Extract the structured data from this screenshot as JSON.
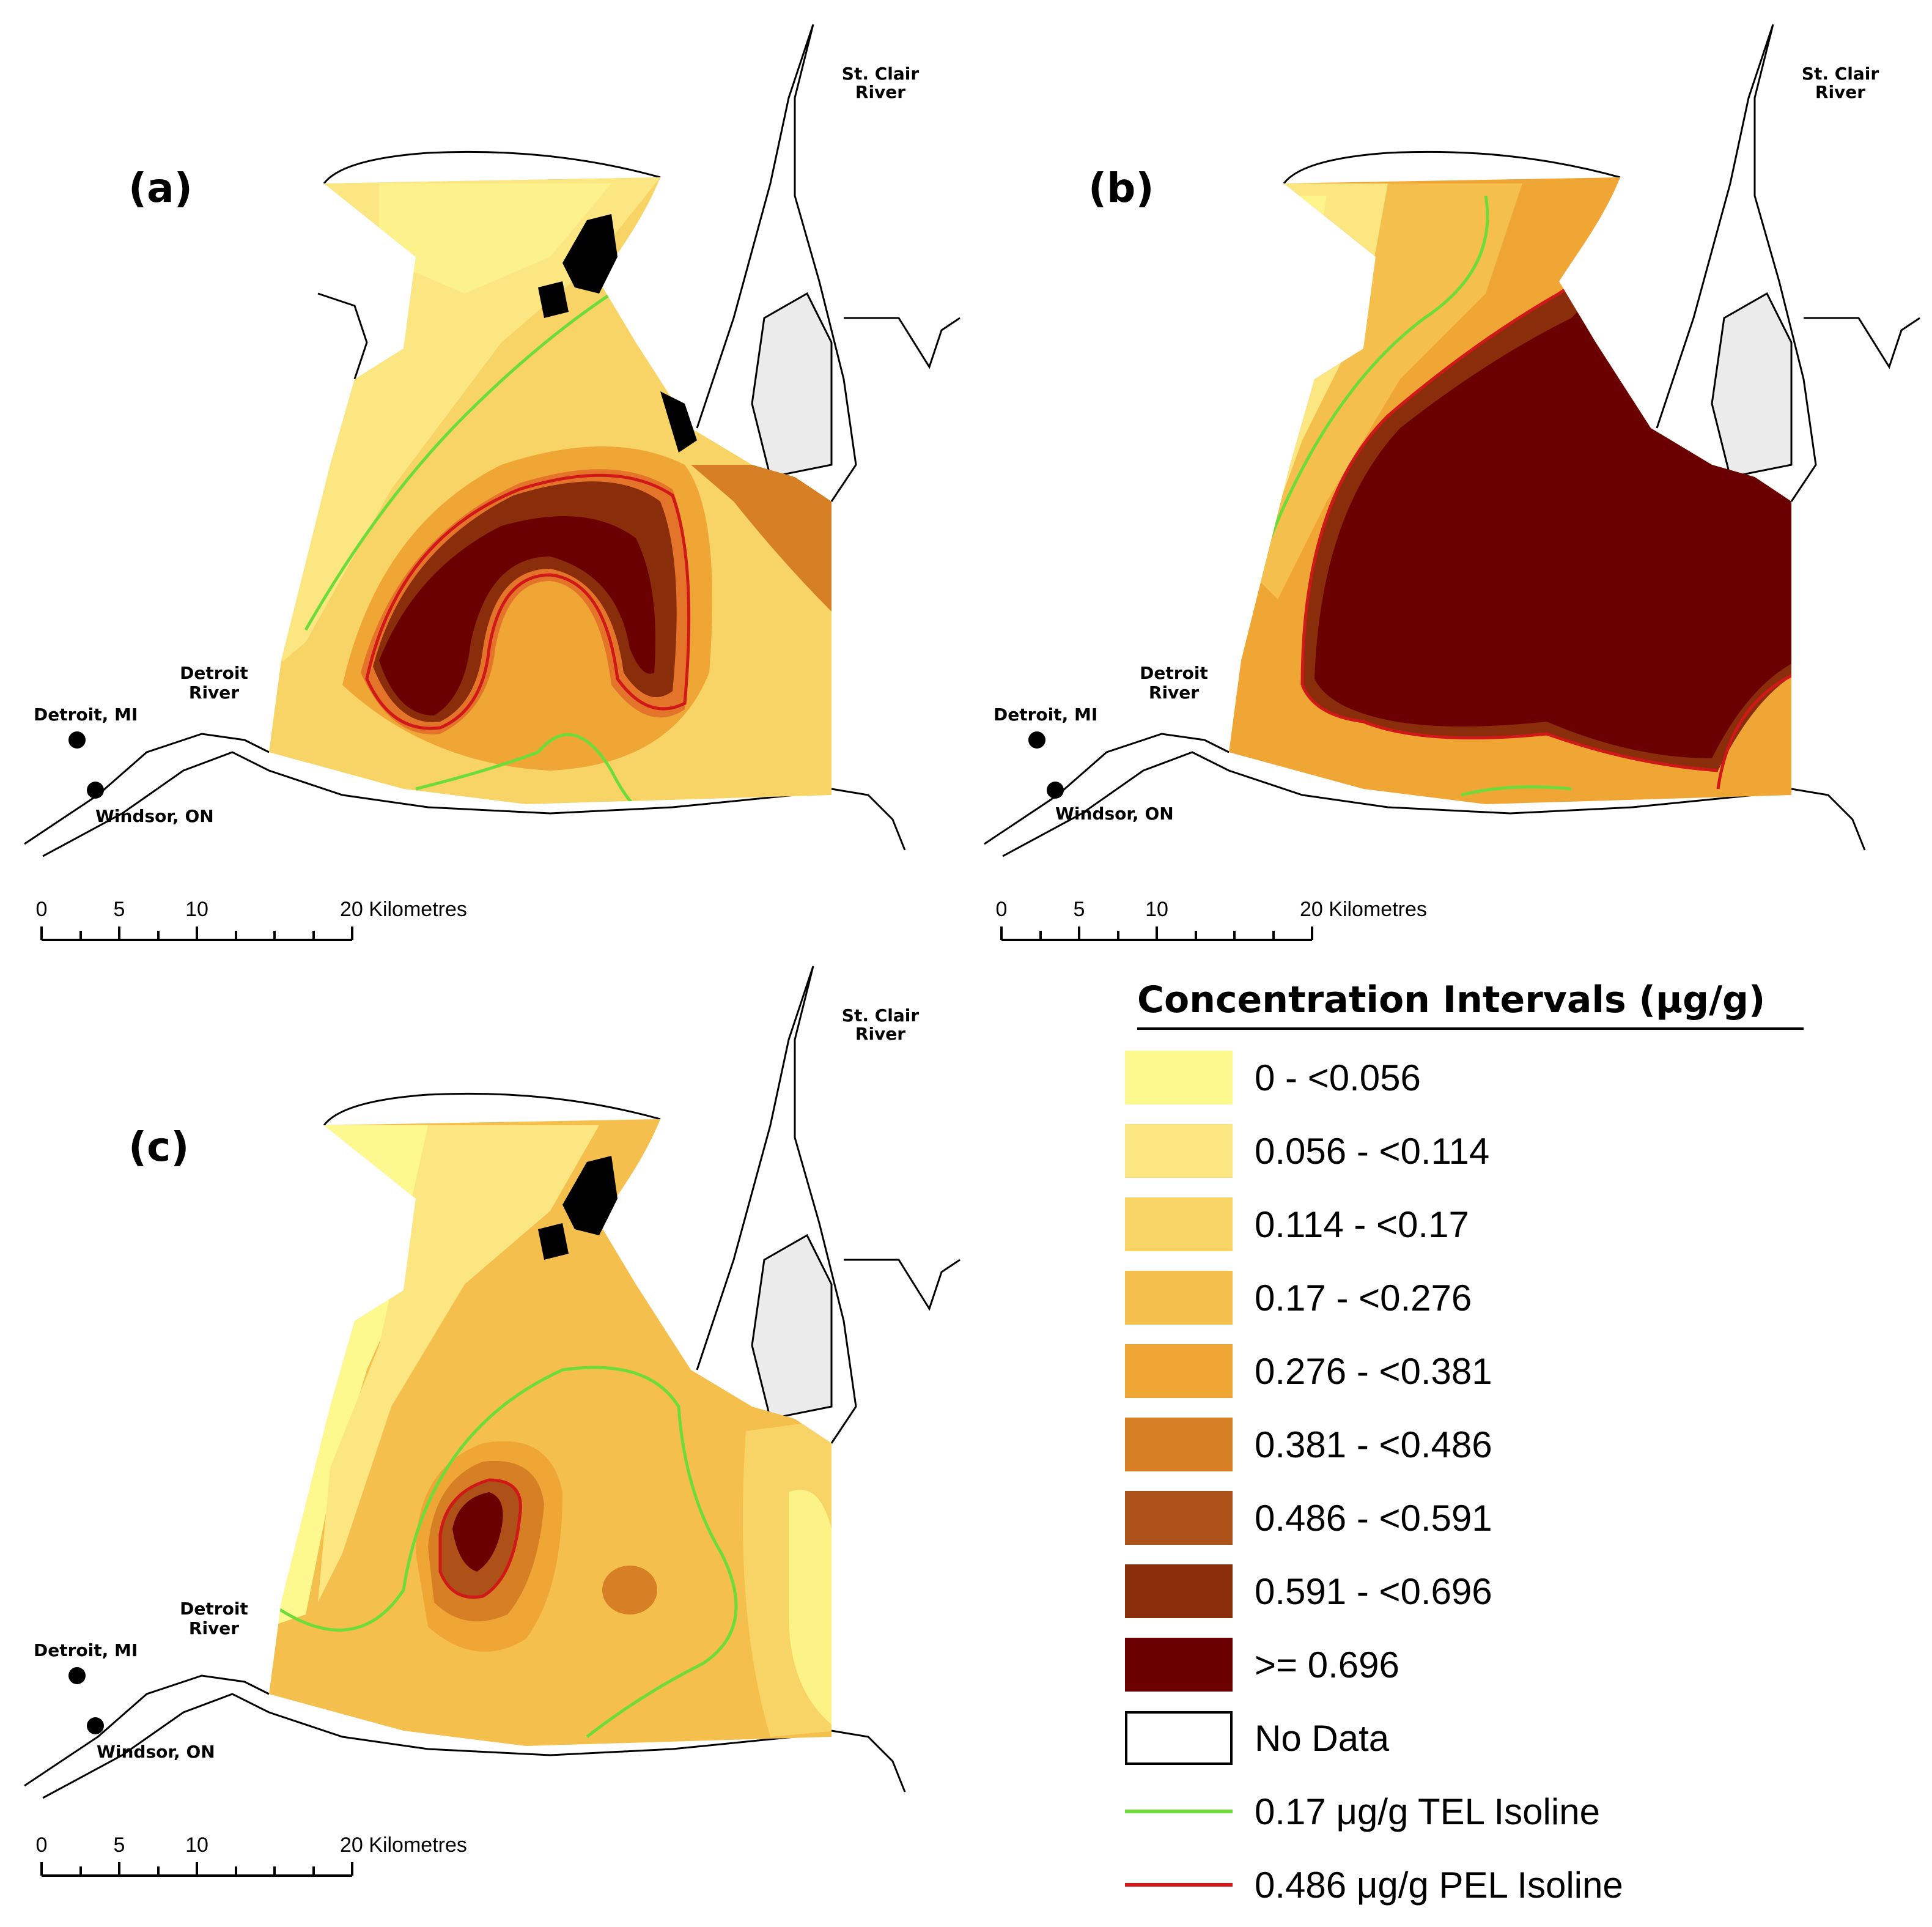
{
  "panels": [
    {
      "id": "a",
      "label": "(a)"
    },
    {
      "id": "b",
      "label": "(b)"
    },
    {
      "id": "c",
      "label": "(c)"
    }
  ],
  "place_labels": {
    "st_clair_line1": "St. Clair",
    "st_clair_line2": "River",
    "detroit_river_line1": "Detroit",
    "detroit_river_line2": "River",
    "detroit": "Detroit, MI",
    "windsor": "Windsor, ON"
  },
  "scale_bar": {
    "ticks": [
      "0",
      "5",
      "10",
      "20 Kilometres"
    ]
  },
  "legend": {
    "title": "Concentration Intervals (μg/g)",
    "intervals": [
      {
        "label": "0 - <0.056",
        "color": "#fdf98f"
      },
      {
        "label": "0.056 - <0.114",
        "color": "#fbe682"
      },
      {
        "label": "0.114 - <0.17",
        "color": "#f8d467"
      },
      {
        "label": "0.17 - <0.276",
        "color": "#f4bf4c"
      },
      {
        "label": "0.276 - <0.381",
        "color": "#efa634"
      },
      {
        "label": "0.381 - <0.486",
        "color": "#d67f24"
      },
      {
        "label": "0.486 - <0.591",
        "color": "#ad5119"
      },
      {
        "label": "0.591 - <0.696",
        "color": "#8a2d0a"
      },
      {
        "label": ">= 0.696",
        "color": "#6b0000"
      }
    ],
    "no_data": {
      "label": "No Data",
      "color": "#ffffff"
    },
    "isolines": [
      {
        "label": "0.17 μg/g TEL Isoline",
        "color": "#6ddc3a"
      },
      {
        "label": "0.486 μg/g PEL Isoline",
        "color": "#d01818"
      }
    ]
  }
}
